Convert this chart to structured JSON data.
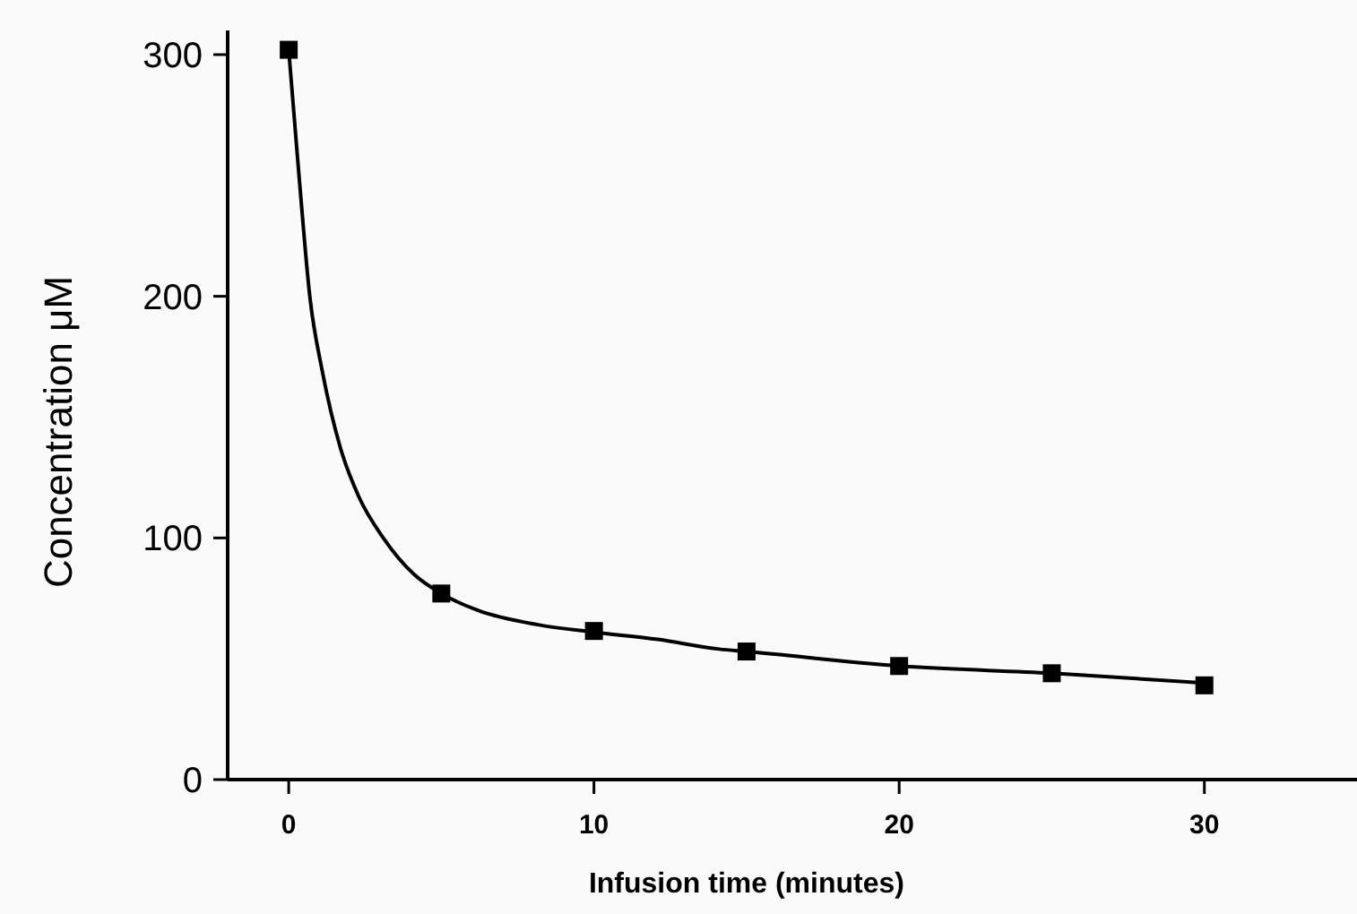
{
  "chart_data": {
    "type": "scatter",
    "xlabel": "Infusion time (minutes)",
    "ylabel": "Concentration μM",
    "xlim": [
      -2,
      35
    ],
    "ylim": [
      0,
      310
    ],
    "xticks": [
      0,
      10,
      20,
      30
    ],
    "yticks": [
      0,
      100,
      200,
      300
    ],
    "grid": false,
    "series": [
      {
        "type": "line",
        "color": "#000000",
        "marker": "none",
        "x": [
          0,
          0.35,
          0.7,
          1.1,
          1.7,
          2.3,
          3.1,
          4.1,
          5,
          6.2,
          8.2,
          10,
          12.1,
          14.1,
          15,
          20,
          25,
          30
        ],
        "values": [
          302,
          248,
          199,
          169,
          137,
          117,
          100,
          85,
          77,
          70,
          64,
          61,
          58,
          54,
          53,
          47,
          44,
          40
        ]
      },
      {
        "color": "#000000",
        "marker": "square",
        "x": [
          0,
          5,
          10,
          15,
          20,
          25,
          30
        ],
        "values": [
          302,
          77,
          61.5,
          53,
          47,
          44,
          39
        ]
      }
    ]
  }
}
